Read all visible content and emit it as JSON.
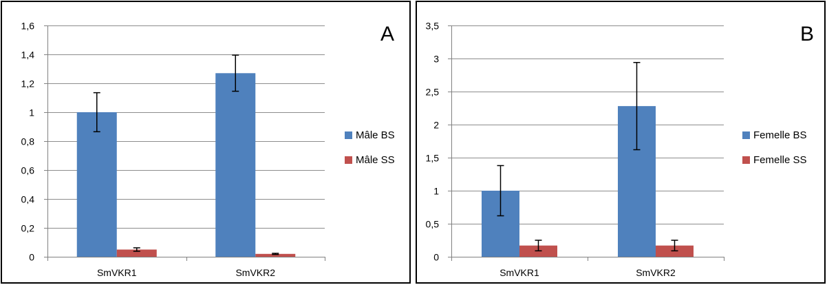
{
  "chart_data": [
    {
      "type": "bar",
      "panel_label": "A",
      "categories": [
        "SmVKR1",
        "SmVKR2"
      ],
      "series": [
        {
          "name": "Mâle BS",
          "color": "#4f81bd",
          "values": [
            1.0,
            1.27
          ],
          "errors": [
            0.135,
            0.125
          ]
        },
        {
          "name": "Mâle SS",
          "color": "#c0504d",
          "values": [
            0.05,
            0.02
          ],
          "errors": [
            0.012,
            0.004
          ]
        }
      ],
      "yticks": [
        "0",
        "0,2",
        "0,4",
        "0,6",
        "0,8",
        "1",
        "1,2",
        "1,4",
        "1,6"
      ],
      "ylim": [
        0,
        1.6
      ],
      "ystep": 0.2,
      "grid": true,
      "legend_position": "right"
    },
    {
      "type": "bar",
      "panel_label": "B",
      "categories": [
        "SmVKR1",
        "SmVKR2"
      ],
      "series": [
        {
          "name": "Femelle BS",
          "color": "#4f81bd",
          "values": [
            1.0,
            2.28
          ],
          "errors": [
            0.38,
            0.66
          ]
        },
        {
          "name": "Femelle SS",
          "color": "#c0504d",
          "values": [
            0.17,
            0.17
          ],
          "errors": [
            0.08,
            0.08
          ]
        }
      ],
      "yticks": [
        "0",
        "0,5",
        "1",
        "1,5",
        "2",
        "2,5",
        "3",
        "3,5"
      ],
      "ylim": [
        0,
        3.5
      ],
      "ystep": 0.5,
      "grid": true,
      "legend_position": "right"
    }
  ]
}
